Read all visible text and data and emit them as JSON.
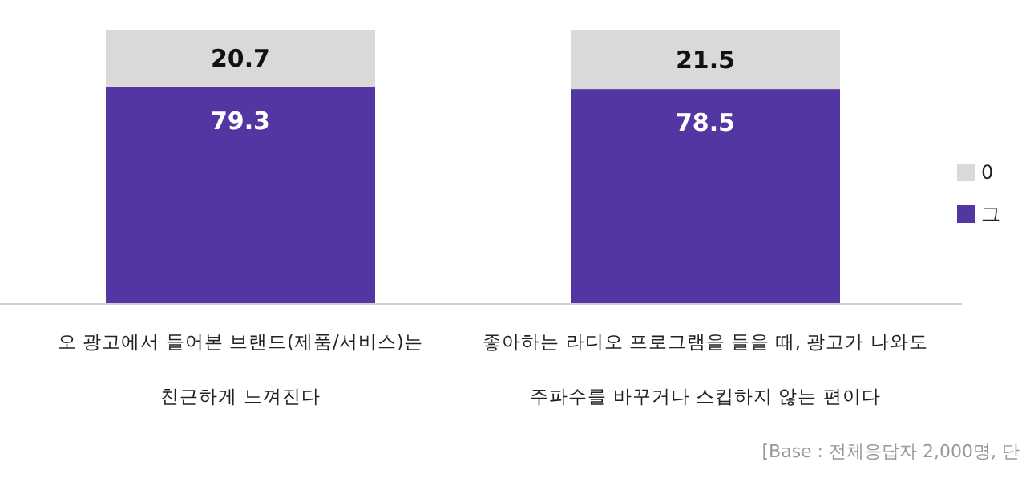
{
  "chart_data": {
    "type": "bar",
    "stacked": true,
    "data_labels": true,
    "legend": "right",
    "ylim": [
      0,
      100
    ],
    "tick_labels": "x",
    "categories": [
      "오 광고에서 들어본 브랜드(제품/서비스)는\n친근하게 느껴진다",
      "좋아하는 라디오 프로그램을 들을 때, 광고가 나와도\n주파수를 바꾸거나 스킵하지 않는 편이다"
    ],
    "series": [
      {
        "name": "그",
        "color": "#5436a3",
        "values": [
          79.3,
          78.5
        ]
      },
      {
        "name": "0",
        "color": "#d9d9d9",
        "values": [
          20.7,
          21.5
        ]
      }
    ],
    "annotations": [
      "[Base : 전체응답자 2,000명, 단"
    ]
  }
}
